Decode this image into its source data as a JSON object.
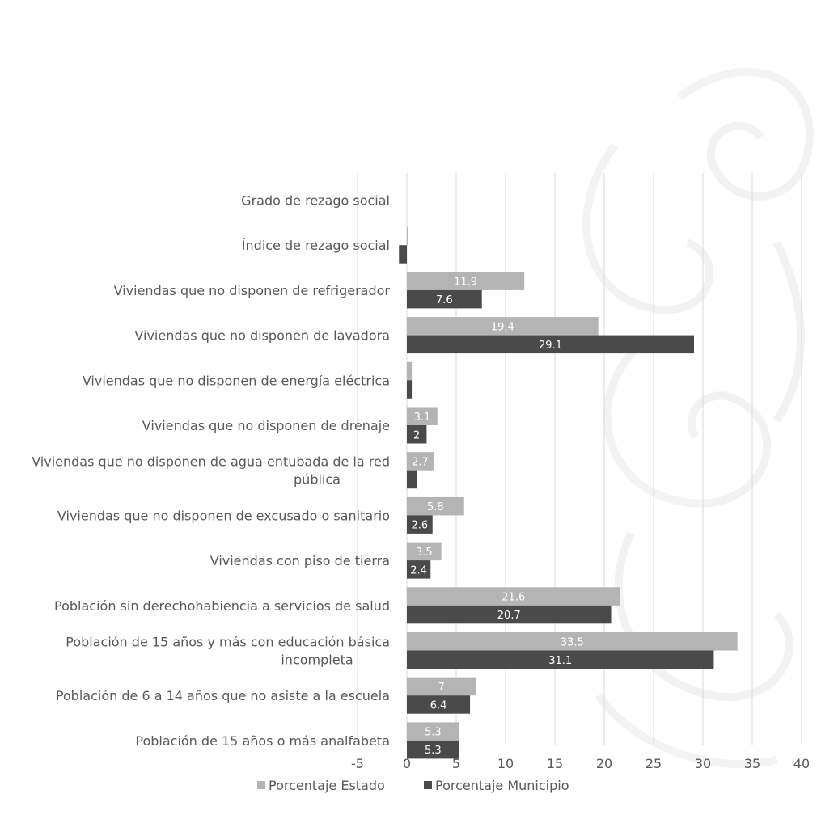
{
  "chart_data": {
    "type": "bar",
    "orientation": "horizontal",
    "categories": [
      "Grado de rezago social",
      "Índice de rezago social",
      "Viviendas que no disponen de refrigerador",
      "Viviendas que no disponen de lavadora",
      "Viviendas que no disponen de energía eléctrica",
      "Viviendas que no disponen de drenaje",
      "Viviendas que no disponen de agua entubada de la red pública",
      "Viviendas que no disponen de excusado o sanitario",
      "Viviendas con piso de tierra",
      "Población sin derechohabiencia a servicios de salud",
      "Población de 15 años y más con educación básica incompleta",
      "Población de 6 a 14 años que no asiste a la escuela",
      "Población de 15 años o más analfabeta"
    ],
    "category_lines": [
      [
        "Grado de rezago social"
      ],
      [
        "Índice de rezago social"
      ],
      [
        "Viviendas que no disponen de refrigerador"
      ],
      [
        "Viviendas que no disponen de lavadora"
      ],
      [
        "Viviendas que no disponen de energía eléctrica"
      ],
      [
        "Viviendas que no disponen de drenaje"
      ],
      [
        "Viviendas que no disponen de agua entubada de la red",
        "pública"
      ],
      [
        "Viviendas que no disponen de excusado o sanitario"
      ],
      [
        "Viviendas con piso de tierra"
      ],
      [
        "Población sin derechohabiencia a servicios de salud"
      ],
      [
        "Población de 15 años y más con educación básica",
        "incompleta"
      ],
      [
        "Población de 6 a 14 años que no asiste a la escuela"
      ],
      [
        "Población de 15 años o más analfabeta"
      ]
    ],
    "series": [
      {
        "name": "Porcentaje Estado",
        "color": "#b4b4b4",
        "values": [
          0,
          0.1,
          11.9,
          19.4,
          0.5,
          3.1,
          2.7,
          5.8,
          3.5,
          21.6,
          33.5,
          7,
          5.3
        ],
        "labels": [
          "",
          "",
          "11.9",
          "19.4",
          "",
          "3.1",
          "2.7",
          "5.8",
          "3.5",
          "21.6",
          "33.5",
          "7",
          "5.3"
        ]
      },
      {
        "name": "Porcentaje Municipio",
        "color": "#4a4a4a",
        "values": [
          0,
          -0.8,
          7.6,
          29.1,
          0.5,
          2,
          1,
          2.6,
          2.4,
          20.7,
          31.1,
          6.4,
          5.3
        ],
        "labels": [
          "",
          "",
          "7.6",
          "29.1",
          "",
          "2",
          "",
          "2.6",
          "2.4",
          "20.7",
          "31.1",
          "6.4",
          "5.3"
        ]
      }
    ],
    "xlim": [
      -5,
      40
    ],
    "xticks": [
      -5,
      0,
      5,
      10,
      15,
      20,
      25,
      30,
      35,
      40
    ],
    "xtick_labels": [
      "-5",
      "0",
      "5",
      "10",
      "15",
      "20",
      "25",
      "30",
      "35",
      "40"
    ],
    "grid": true,
    "legend": "bottom",
    "title": "",
    "xlabel": "",
    "ylabel": "",
    "background": "#ffffff",
    "grid_color": "#d9d9d9",
    "text_color": "#595959"
  }
}
